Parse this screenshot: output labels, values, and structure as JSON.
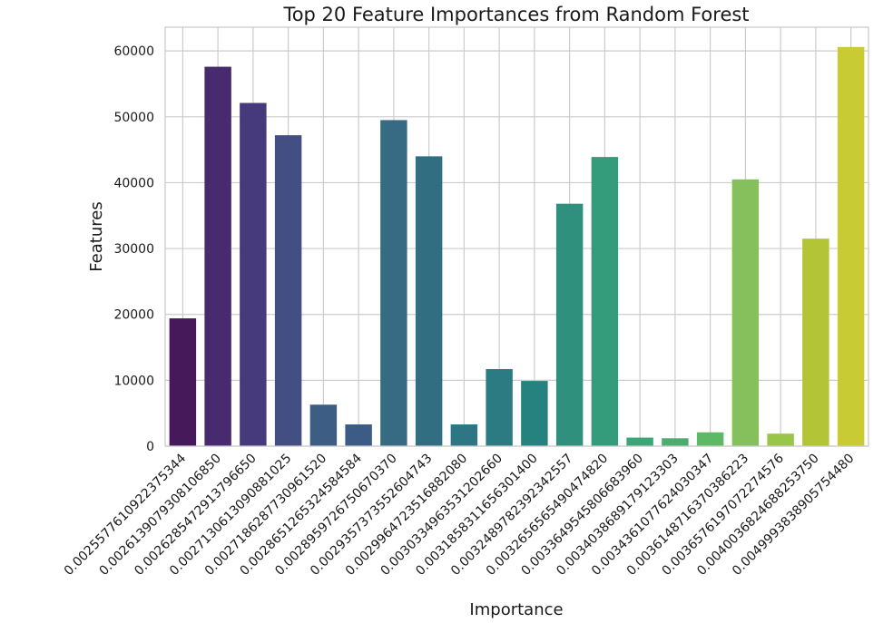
{
  "chart_data": {
    "type": "bar",
    "title": "Top 20 Feature Importances from Random Forest",
    "xlabel": "Importance",
    "ylabel": "Features",
    "categories": [
      "0.0025577610922375344",
      "0.0026139079308106850",
      "0.0026285472913796650",
      "0.0027130613090881025",
      "0.0027186287730961520",
      "0.0028651265324584584",
      "0.0028959726750670370",
      "0.0029357373552604743",
      "0.0029964723516882080",
      "0.0030334963531202660",
      "0.0031858311656301400",
      "0.0032489782392342557",
      "0.0032656565490474820",
      "0.0033649545806683960",
      "0.0034038689179123303",
      "0.0034361077624030347",
      "0.0036148716370386223",
      "0.0036576197072274576",
      "0.0040036824688253750",
      "0.0049993838905754480"
    ],
    "values": [
      19400,
      57600,
      52100,
      47200,
      6300,
      3300,
      49500,
      44000,
      3300,
      11700,
      9900,
      36800,
      43900,
      1300,
      1200,
      2100,
      40500,
      1900,
      31500,
      60600
    ],
    "colors": [
      "#461a5a",
      "#482a6e",
      "#473a7c",
      "#434e82",
      "#3e5d85",
      "#3d5c85",
      "#376b84",
      "#316e82",
      "#2d7684",
      "#2c7b82",
      "#26827f",
      "#2f907e",
      "#349c7b",
      "#3ba776",
      "#4cad70",
      "#5eb967",
      "#85c05c",
      "#99c647",
      "#b3c537",
      "#c8cb33"
    ],
    "yticks": [
      0,
      10000,
      20000,
      30000,
      40000,
      50000,
      60000
    ],
    "ylim": [
      0,
      63600
    ],
    "grid": true,
    "legend": "none"
  }
}
